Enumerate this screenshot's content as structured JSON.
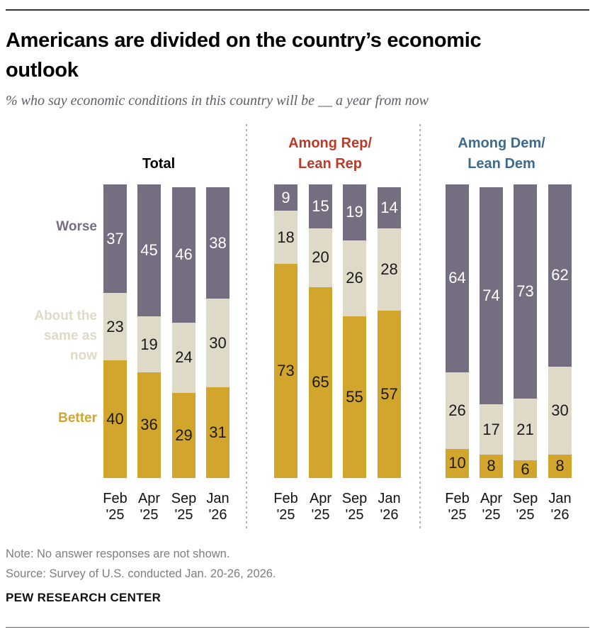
{
  "header": {
    "title_lines": [
      "Americans are divided on the country’s economic",
      "outlook"
    ],
    "subtitle": "% who say economic conditions in this country will be __ a year from now"
  },
  "chart_data": {
    "type": "bar",
    "stacked": true,
    "unit": "percent",
    "ylim": [
      0,
      100
    ],
    "grid": false,
    "categories": [
      "Feb '25",
      "Apr '25",
      "Sep '25",
      "Jan '26"
    ],
    "segment_order_top_to_bottom": [
      "worse",
      "same",
      "better"
    ],
    "colors": {
      "worse": "#756e80",
      "same": "#dfd9c7",
      "better": "#d2a62d",
      "value_on_worse": "#ffffff",
      "value_on_light": "#1a1a1a",
      "total_header": "#000000",
      "rep_header": "#bf3927",
      "dem_header": "#3e6b8d"
    },
    "side_labels": {
      "worse": "Worse",
      "same_lines": [
        "About the",
        "same as",
        "now"
      ],
      "better": "Better"
    },
    "panels": [
      {
        "id": "total",
        "title_lines": [
          "Total"
        ],
        "title_color": "#000000",
        "series": [
          {
            "name": "Worse",
            "key": "worse",
            "values": [
              37,
              45,
              46,
              38
            ]
          },
          {
            "name": "About the same as now",
            "key": "same",
            "values": [
              23,
              19,
              24,
              30
            ]
          },
          {
            "name": "Better",
            "key": "better",
            "values": [
              40,
              36,
              29,
              31
            ]
          }
        ]
      },
      {
        "id": "rep",
        "title_lines": [
          "Among Rep/",
          "Lean Rep"
        ],
        "title_color": "#bf3927",
        "series": [
          {
            "name": "Worse",
            "key": "worse",
            "values": [
              9,
              15,
              19,
              14
            ]
          },
          {
            "name": "About the same as now",
            "key": "same",
            "values": [
              18,
              20,
              26,
              28
            ]
          },
          {
            "name": "Better",
            "key": "better",
            "values": [
              73,
              65,
              55,
              57
            ]
          }
        ]
      },
      {
        "id": "dem",
        "title_lines": [
          "Among Dem/",
          "Lean Dem"
        ],
        "title_color": "#3e6b8d",
        "series": [
          {
            "name": "Worse",
            "key": "worse",
            "values": [
              64,
              74,
              73,
              62
            ]
          },
          {
            "name": "About the same as now",
            "key": "same",
            "values": [
              26,
              17,
              21,
              30
            ]
          },
          {
            "name": "Better",
            "key": "better",
            "values": [
              10,
              8,
              6,
              8
            ]
          }
        ]
      }
    ]
  },
  "footer": {
    "note": "Note: No answer responses are not shown.",
    "source": "Source: Survey of U.S. conducted Jan. 20-26, 2026.",
    "brand": "PEW RESEARCH CENTER"
  }
}
